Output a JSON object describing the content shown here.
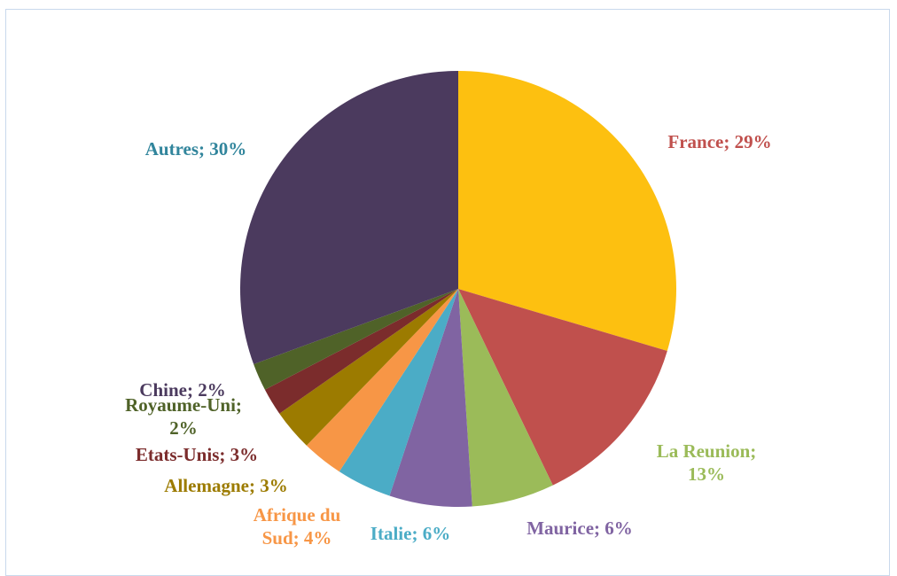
{
  "chart_data": {
    "type": "pie",
    "categories": [
      "France",
      "La Reunion",
      "Maurice",
      "Italie",
      "Afrique du Sud",
      "Allemagne",
      "Etats-Unis",
      "Royaume-Uni",
      "Chine",
      "Autres"
    ],
    "values": [
      29,
      13,
      6,
      6,
      4,
      3,
      3,
      2,
      2,
      30
    ],
    "value_labels": [
      "France; 29%",
      "La Reunion; 13%",
      "Maurice; 6%",
      "Italie; 6%",
      "Afrique du Sud; 4%",
      "Allemagne; 3%",
      "Etats-Unis; 3%",
      "Royaume-Uni; 2%",
      "Chine; 2%",
      "Autres; 30%"
    ],
    "colors": [
      "#fdc010",
      "#c0504d",
      "#9bbb59",
      "#8064a2",
      "#4bacc6",
      "#f79646",
      "#9c7b00",
      "#7b2c2c",
      "#4f6228",
      "#4b3a5e"
    ],
    "label_colors": [
      "#c0504d",
      "#9bbb59",
      "#8064a2",
      "#4bacc6",
      "#f79646",
      "#9c7b00",
      "#7b2c2c",
      "#4f6228",
      "#4b3a5e",
      "#31859c"
    ]
  }
}
